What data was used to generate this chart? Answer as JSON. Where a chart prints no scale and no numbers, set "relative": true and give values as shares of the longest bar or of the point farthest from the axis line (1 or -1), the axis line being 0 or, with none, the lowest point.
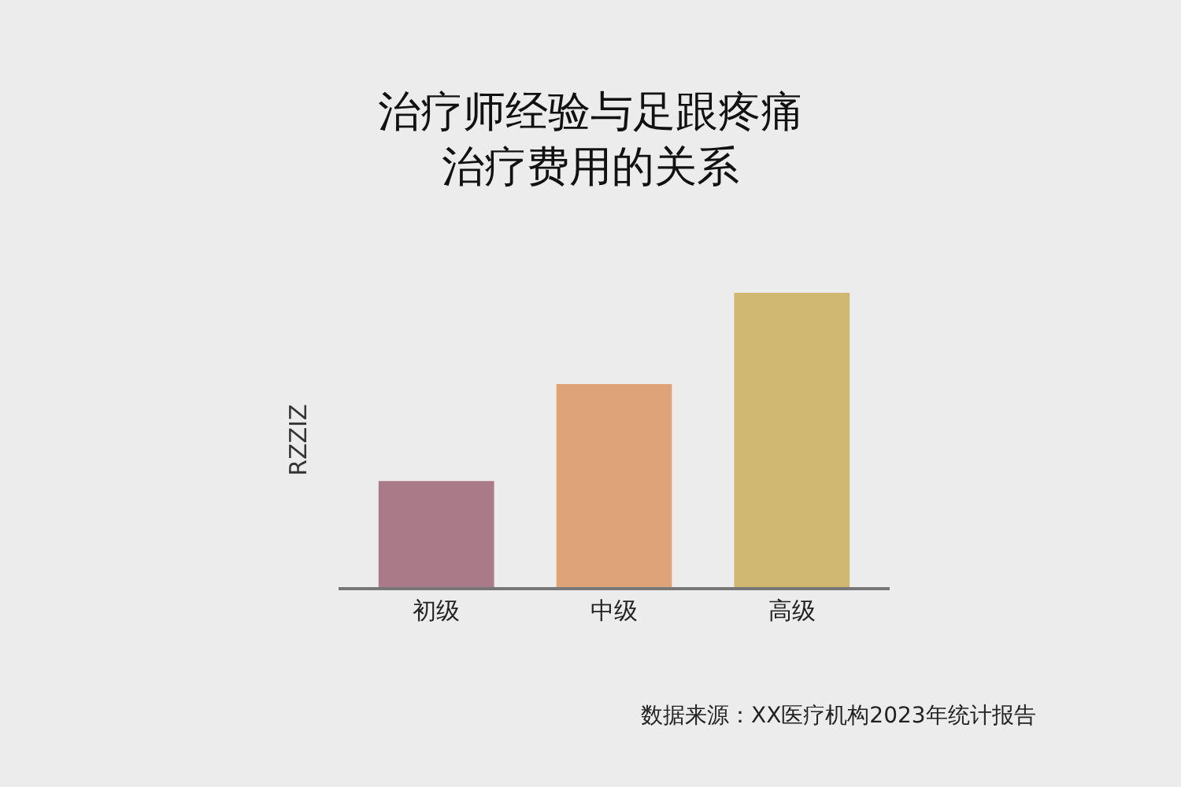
{
  "chart_data": {
    "type": "bar",
    "title": "治疗师经验与足跟疼痛治疗费用的关系",
    "ylabel": "RZZIZ",
    "relative": true,
    "categories": [
      "初级",
      "中级",
      "高级"
    ],
    "values": [
      0.36,
      0.69,
      1
    ],
    "colors": [
      "#a97a87",
      "#dea376",
      "#d0b873"
    ],
    "annotations": [
      "数据来源：XX医疗机构2023年统计报告"
    ]
  }
}
